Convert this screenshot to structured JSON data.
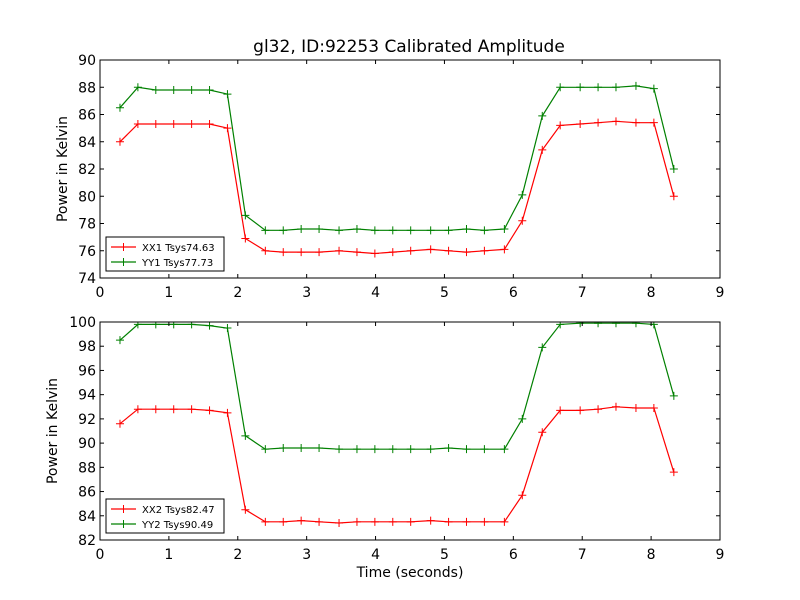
{
  "chart_data": [
    {
      "type": "line",
      "title": "gl32, ID:92253 Calibrated Amplitude",
      "xlabel": "",
      "ylabel": "Power in Kelvin",
      "xlim": [
        0,
        9
      ],
      "ylim": [
        74,
        90
      ],
      "xticks": [
        "0",
        "1",
        "2",
        "3",
        "4",
        "5",
        "6",
        "7",
        "8",
        "9"
      ],
      "yticks": [
        "74",
        "76",
        "78",
        "80",
        "82",
        "84",
        "86",
        "88",
        "90"
      ],
      "legend_position": "lower-left",
      "x": [
        0.29,
        0.55,
        0.81,
        1.07,
        1.33,
        1.59,
        1.85,
        2.11,
        2.4,
        2.66,
        2.92,
        3.18,
        3.47,
        3.73,
        3.99,
        4.25,
        4.51,
        4.8,
        5.06,
        5.32,
        5.58,
        5.87,
        6.13,
        6.42,
        6.68,
        6.97,
        7.23,
        7.49,
        7.78,
        8.04,
        8.33
      ],
      "series": [
        {
          "name": "XX1 Tsys74.63",
          "color": "#ff0000",
          "values": [
            84.0,
            85.3,
            85.3,
            85.3,
            85.3,
            85.3,
            85.0,
            76.9,
            76.0,
            75.9,
            75.9,
            75.9,
            76.0,
            75.9,
            75.8,
            75.9,
            76.0,
            76.1,
            76.0,
            75.9,
            76.0,
            76.1,
            78.2,
            83.4,
            85.2,
            85.3,
            85.4,
            85.5,
            85.4,
            85.4,
            80.0
          ]
        },
        {
          "name": "YY1 Tsys77.73",
          "color": "#008000",
          "values": [
            86.5,
            88.0,
            87.8,
            87.8,
            87.8,
            87.8,
            87.5,
            78.6,
            77.5,
            77.5,
            77.6,
            77.6,
            77.5,
            77.6,
            77.5,
            77.5,
            77.5,
            77.5,
            77.5,
            77.6,
            77.5,
            77.6,
            80.1,
            85.9,
            88.0,
            88.0,
            88.0,
            88.0,
            88.1,
            87.9,
            82.0
          ]
        }
      ]
    },
    {
      "type": "line",
      "title": "",
      "xlabel": "Time (seconds)",
      "ylabel": "Power in Kelvin",
      "xlim": [
        0,
        9
      ],
      "ylim": [
        82,
        100
      ],
      "xticks": [
        "0",
        "1",
        "2",
        "3",
        "4",
        "5",
        "6",
        "7",
        "8",
        "9"
      ],
      "yticks": [
        "82",
        "84",
        "86",
        "88",
        "90",
        "92",
        "94",
        "96",
        "98",
        "100"
      ],
      "legend_position": "lower-left",
      "x": [
        0.29,
        0.55,
        0.81,
        1.07,
        1.33,
        1.59,
        1.85,
        2.11,
        2.4,
        2.66,
        2.92,
        3.18,
        3.47,
        3.73,
        3.99,
        4.25,
        4.51,
        4.8,
        5.06,
        5.32,
        5.58,
        5.87,
        6.13,
        6.42,
        6.68,
        6.97,
        7.23,
        7.49,
        7.78,
        8.04,
        8.33
      ],
      "series": [
        {
          "name": "XX2 Tsys82.47",
          "color": "#ff0000",
          "values": [
            91.6,
            92.8,
            92.8,
            92.8,
            92.8,
            92.7,
            92.5,
            84.5,
            83.5,
            83.5,
            83.6,
            83.5,
            83.4,
            83.5,
            83.5,
            83.5,
            83.5,
            83.6,
            83.5,
            83.5,
            83.5,
            83.5,
            85.7,
            90.9,
            92.7,
            92.7,
            92.8,
            93.0,
            92.9,
            92.9,
            87.6
          ]
        },
        {
          "name": "YY2 Tsys90.49",
          "color": "#008000",
          "values": [
            98.5,
            99.8,
            99.8,
            99.8,
            99.8,
            99.7,
            99.5,
            90.6,
            89.5,
            89.6,
            89.6,
            89.6,
            89.5,
            89.5,
            89.5,
            89.5,
            89.5,
            89.5,
            89.6,
            89.5,
            89.5,
            89.5,
            92.0,
            97.9,
            99.8,
            99.9,
            99.9,
            99.9,
            99.9,
            99.8,
            93.9
          ]
        }
      ]
    }
  ]
}
